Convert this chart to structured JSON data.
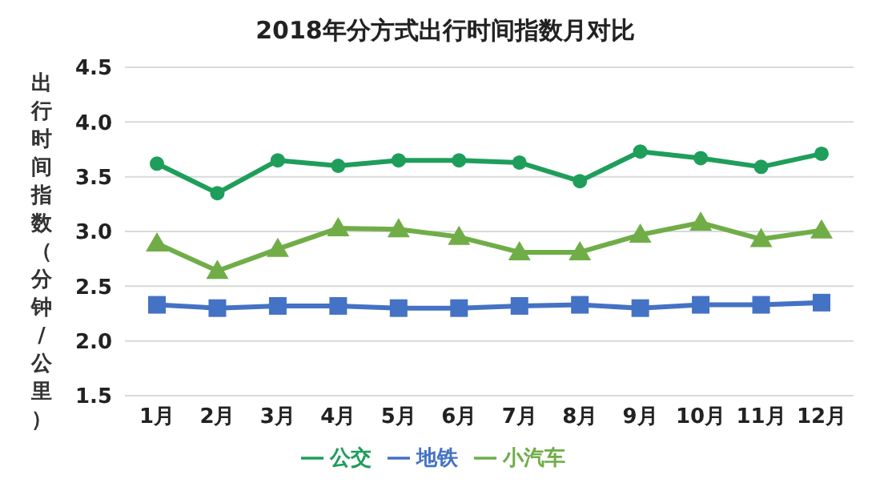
{
  "chart_data": {
    "type": "line",
    "title": "2018年分方式出行时间指数月对比",
    "ylabel": "出行时间指数（分钟/公里）",
    "categories": [
      "1月",
      "2月",
      "3月",
      "4月",
      "5月",
      "6月",
      "7月",
      "8月",
      "9月",
      "10月",
      "11月",
      "12月"
    ],
    "series": [
      {
        "name": "公交",
        "color": "#1e9e5a",
        "marker": "circle",
        "values": [
          3.62,
          3.35,
          3.65,
          3.6,
          3.65,
          3.65,
          3.63,
          3.46,
          3.73,
          3.67,
          3.59,
          3.71
        ]
      },
      {
        "name": "地铁",
        "color": "#4472c4",
        "marker": "square",
        "values": [
          2.33,
          2.3,
          2.32,
          2.32,
          2.3,
          2.3,
          2.32,
          2.33,
          2.3,
          2.33,
          2.33,
          2.35
        ]
      },
      {
        "name": "小汽车",
        "color": "#70ad47",
        "marker": "triangle",
        "values": [
          2.89,
          2.64,
          2.84,
          3.03,
          3.02,
          2.95,
          2.81,
          2.81,
          2.97,
          3.08,
          2.93,
          3.01
        ]
      }
    ],
    "ylim": [
      1.5,
      4.5
    ],
    "yticks": [
      1.5,
      {
        "value": 2,
        "label": "2.0"
      },
      2.5,
      {
        "value": 3,
        "label": "3.0"
      },
      3.5,
      {
        "value": 4,
        "label": "4.0"
      },
      4.5
    ],
    "grid": "y",
    "legend": "bottom",
    "line_style": "solid"
  }
}
